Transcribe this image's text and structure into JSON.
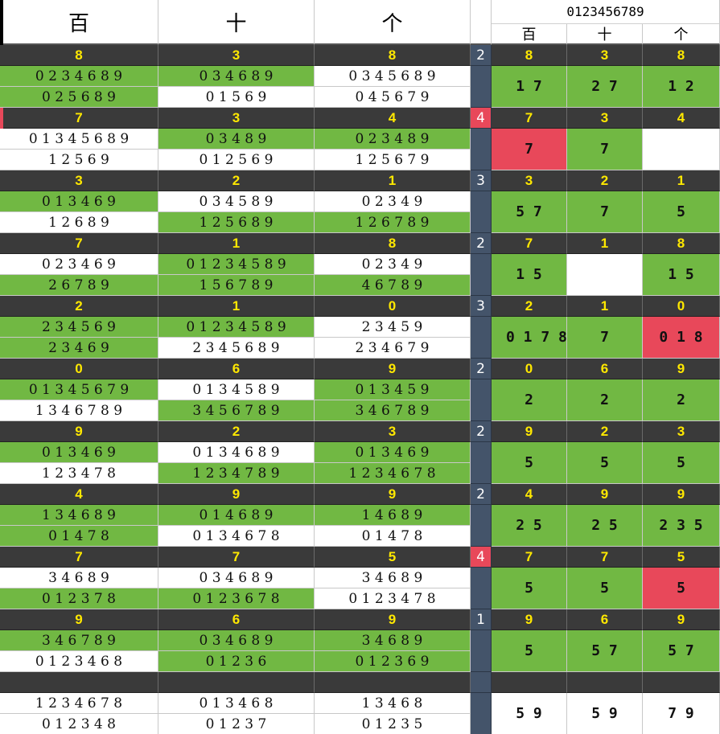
{
  "header": {
    "col_hundreds": "百",
    "col_tens": "十",
    "col_units": "个",
    "digits_title": "0123456789",
    "sub_hundreds": "百",
    "sub_tens": "十",
    "sub_units": "个"
  },
  "rows": [
    {
      "draw": [
        "8",
        "3",
        "8"
      ],
      "count": "2",
      "count_red": false,
      "lists": [
        [
          "0 2 3 4 6 8 9",
          "0 2 5 6 8 9"
        ],
        [
          "0 3 4 6 8 9",
          "0 1 5 6 9"
        ],
        [
          "0 3 4 5 6 8 9",
          "0 4 5 6 7 9"
        ]
      ],
      "fills": [
        [
          "g",
          "g"
        ],
        [
          "g",
          "w"
        ],
        [
          "w",
          "w"
        ]
      ],
      "big": [
        "1 7",
        "2 7",
        "1 2"
      ],
      "big_fills": [
        "g",
        "g",
        "g"
      ],
      "mark": false
    },
    {
      "draw": [
        "7",
        "3",
        "4"
      ],
      "count": "4",
      "count_red": true,
      "lists": [
        [
          "0 1 3 4 5 6 8 9",
          "1 2 5 6 9"
        ],
        [
          "0 3 4 8 9",
          "0 1 2 5 6 9"
        ],
        [
          "0 2 3 4 8 9",
          "1 2 5 6 7 9"
        ]
      ],
      "fills": [
        [
          "w",
          "w"
        ],
        [
          "g",
          "w"
        ],
        [
          "g",
          "w"
        ]
      ],
      "big": [
        "7",
        "7",
        ""
      ],
      "big_fills": [
        "r",
        "g",
        "w"
      ],
      "mark": true
    },
    {
      "draw": [
        "3",
        "2",
        "1"
      ],
      "count": "3",
      "count_red": false,
      "lists": [
        [
          "0 1 3 4 6 9",
          "1 2 6 8 9"
        ],
        [
          "0 3 4 5 8 9",
          "1 2 5 6 8 9"
        ],
        [
          "0 2 3 4 9",
          "1 2 6 7 8 9"
        ]
      ],
      "fills": [
        [
          "g",
          "w"
        ],
        [
          "w",
          "g"
        ],
        [
          "w",
          "g"
        ]
      ],
      "big": [
        "5 7",
        "7",
        "5"
      ],
      "big_fills": [
        "g",
        "g",
        "g"
      ],
      "mark": false
    },
    {
      "draw": [
        "7",
        "1",
        "8"
      ],
      "count": "2",
      "count_red": false,
      "lists": [
        [
          "0 2 3 4 6 9",
          "2 6 7 8 9"
        ],
        [
          "0 1 2 3 4 5 8 9",
          "1 5 6 7 8 9"
        ],
        [
          "0 2 3 4 9",
          "4 6 7 8 9"
        ]
      ],
      "fills": [
        [
          "w",
          "g"
        ],
        [
          "g",
          "g"
        ],
        [
          "w",
          "g"
        ]
      ],
      "big": [
        "1 5",
        "",
        "1 5"
      ],
      "big_fills": [
        "g",
        "w",
        "g"
      ],
      "mark": false
    },
    {
      "draw": [
        "2",
        "1",
        "0"
      ],
      "count": "3",
      "count_red": false,
      "lists": [
        [
          "2 3 4 5 6 9",
          "2 3 4 6 9"
        ],
        [
          "0 1 2 3 4 5 8 9",
          "2 3 4 5 6 8 9"
        ],
        [
          "2 3 4 5 9",
          "2 3 4 6 7 9"
        ]
      ],
      "fills": [
        [
          "g",
          "g"
        ],
        [
          "g",
          "w"
        ],
        [
          "w",
          "w"
        ]
      ],
      "big": [
        "0 1 7 8",
        "7",
        "0 1 8"
      ],
      "big_fills": [
        "g",
        "g",
        "r"
      ],
      "mark": false
    },
    {
      "draw": [
        "0",
        "6",
        "9"
      ],
      "count": "2",
      "count_red": false,
      "lists": [
        [
          "0 1 3 4 5 6 7 9",
          "1 3 4 6 7 8 9"
        ],
        [
          "0 1 3 4 5 8 9",
          "3 4 5 6 7 8 9"
        ],
        [
          "0 1 3 4 5 9",
          "3 4 6 7 8 9"
        ]
      ],
      "fills": [
        [
          "g",
          "w"
        ],
        [
          "w",
          "g"
        ],
        [
          "g",
          "g"
        ]
      ],
      "big": [
        "2",
        "2",
        "2"
      ],
      "big_fills": [
        "g",
        "g",
        "g"
      ],
      "mark": false
    },
    {
      "draw": [
        "9",
        "2",
        "3"
      ],
      "count": "2",
      "count_red": false,
      "lists": [
        [
          "0 1 3 4 6 9",
          "1 2 3 4 7 8"
        ],
        [
          "0 1 3 4 6 8 9",
          "1 2 3 4 7 8 9"
        ],
        [
          "0 1 3 4 6 9",
          "1 2 3 4 6 7 8"
        ]
      ],
      "fills": [
        [
          "g",
          "w"
        ],
        [
          "w",
          "g"
        ],
        [
          "g",
          "g"
        ]
      ],
      "big": [
        "5",
        "5",
        "5"
      ],
      "big_fills": [
        "g",
        "g",
        "g"
      ],
      "mark": false
    },
    {
      "draw": [
        "4",
        "9",
        "9"
      ],
      "count": "2",
      "count_red": false,
      "lists": [
        [
          "1 3 4 6 8 9",
          "0 1 4 7 8"
        ],
        [
          "0 1 4 6 8 9",
          "0 1 3 4 6 7 8"
        ],
        [
          "1 4 6 8 9",
          "0 1 4 7 8"
        ]
      ],
      "fills": [
        [
          "g",
          "g"
        ],
        [
          "g",
          "w"
        ],
        [
          "g",
          "w"
        ]
      ],
      "big": [
        "2 5",
        "2 5",
        "2 3 5"
      ],
      "big_fills": [
        "g",
        "g",
        "g"
      ],
      "mark": false
    },
    {
      "draw": [
        "7",
        "7",
        "5"
      ],
      "count": "4",
      "count_red": true,
      "lists": [
        [
          "3 4 6 8 9",
          "0 1 2 3 7 8"
        ],
        [
          "0 3 4 6 8 9",
          "0 1 2 3 6 7 8"
        ],
        [
          "3 4 6 8 9",
          "0 1 2 3 4 7 8"
        ]
      ],
      "fills": [
        [
          "w",
          "g"
        ],
        [
          "w",
          "g"
        ],
        [
          "w",
          "w"
        ]
      ],
      "big": [
        "5",
        "5",
        "5"
      ],
      "big_fills": [
        "g",
        "g",
        "r"
      ],
      "mark": false
    },
    {
      "draw": [
        "9",
        "6",
        "9"
      ],
      "count": "1",
      "count_red": false,
      "lists": [
        [
          "3 4 6 7 8 9",
          "0 1 2 3 4 6 8"
        ],
        [
          "0 3 4 6 8 9",
          "0 1 2 3 6"
        ],
        [
          "3 4 6 8 9",
          "0 1 2 3 6 9"
        ]
      ],
      "fills": [
        [
          "g",
          "w"
        ],
        [
          "g",
          "g"
        ],
        [
          "g",
          "g"
        ]
      ],
      "big": [
        "5",
        "5 7",
        "5 7"
      ],
      "big_fills": [
        "g",
        "g",
        "g"
      ],
      "mark": false
    }
  ],
  "final": {
    "lists": [
      [
        "1 2 3 4 6 7 8",
        "0 1 2 3 4 8"
      ],
      [
        "0 1 3 4 6 8",
        "0 1 2 3 7"
      ],
      [
        "1 3 4 6 8",
        "0 1 2 3 5"
      ]
    ],
    "big": [
      "5 9",
      "5 9",
      "7 9"
    ]
  },
  "colors": {
    "green": "#71b843",
    "red": "#e8485a",
    "dark": "#3a3a3a",
    "yellow": "#ffe800",
    "slate": "#44546a"
  }
}
